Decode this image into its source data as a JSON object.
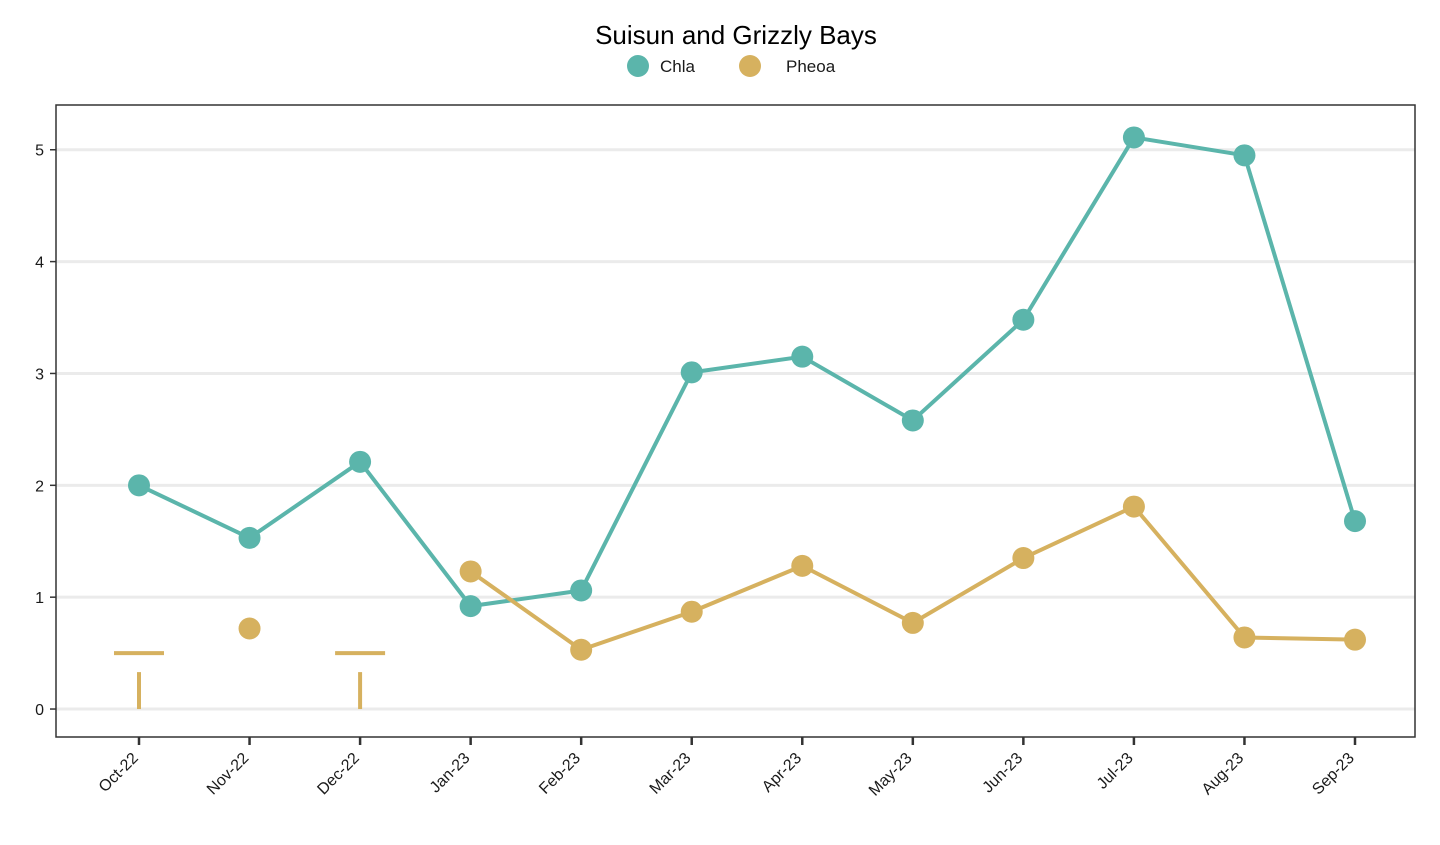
{
  "chart_data": {
    "type": "line",
    "title": "Suisun and Grizzly Bays",
    "xlabel": "",
    "ylabel": "",
    "categories": [
      "Oct-22",
      "Nov-22",
      "Dec-22",
      "Jan-23",
      "Feb-23",
      "Mar-23",
      "Apr-23",
      "May-23",
      "Jun-23",
      "Jul-23",
      "Aug-23",
      "Sep-23"
    ],
    "ylim": [
      -0.25,
      5.4
    ],
    "yticks": [
      0,
      1,
      2,
      3,
      4,
      5
    ],
    "grid": "horizontal",
    "legend_position": "top",
    "series": [
      {
        "name": "Chla",
        "color": "#5bb5ab",
        "values": [
          2.0,
          1.53,
          2.21,
          0.92,
          1.06,
          3.01,
          3.15,
          2.58,
          3.48,
          5.11,
          4.95,
          1.68
        ]
      },
      {
        "name": "Pheoa",
        "color": "#d6b15f",
        "values": [
          null,
          0.72,
          null,
          1.23,
          0.53,
          0.87,
          1.28,
          0.77,
          1.35,
          1.81,
          0.64,
          0.62
        ],
        "below_detection": [
          {
            "category": "Oct-22",
            "upper": 0.5
          },
          {
            "category": "Dec-22",
            "upper": 0.5
          }
        ]
      }
    ]
  }
}
